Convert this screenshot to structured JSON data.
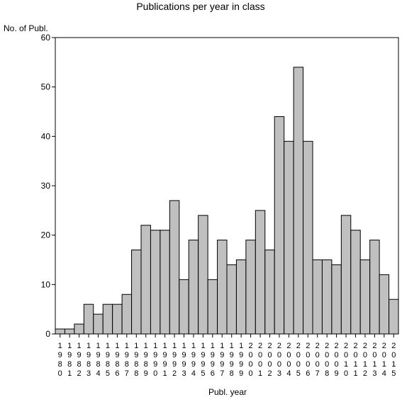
{
  "chart_data": {
    "type": "bar",
    "title": "Publications per year in class",
    "ylabel": "No. of Publ.",
    "xlabel": "Publ. year",
    "ylim": [
      0,
      60
    ],
    "yticks": [
      0,
      10,
      20,
      30,
      40,
      50,
      60
    ],
    "grid": false,
    "colors": {
      "bar_fill": "#c0c0c0",
      "bar_stroke": "#000000"
    },
    "categories": [
      "1980",
      "1981",
      "1982",
      "1983",
      "1984",
      "1985",
      "1986",
      "1987",
      "1988",
      "1989",
      "1990",
      "1991",
      "1992",
      "1993",
      "1994",
      "1995",
      "1996",
      "1997",
      "1998",
      "1999",
      "2000",
      "2001",
      "2002",
      "2003",
      "2004",
      "2005",
      "2006",
      "2007",
      "2008",
      "2009",
      "2010",
      "2011",
      "2012",
      "2013",
      "2014",
      "2015"
    ],
    "values": [
      1,
      1,
      2,
      6,
      4,
      6,
      6,
      8,
      17,
      22,
      21,
      21,
      27,
      11,
      19,
      24,
      11,
      19,
      14,
      15,
      19,
      25,
      17,
      44,
      39,
      54,
      39,
      15,
      15,
      14,
      24,
      21,
      15,
      19,
      12,
      7
    ]
  }
}
